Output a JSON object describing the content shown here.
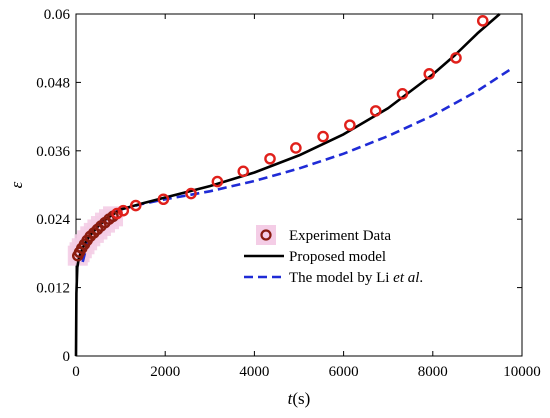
{
  "chart_data": {
    "type": "line",
    "xlabel": {
      "main": "t",
      "unit": "(s)"
    },
    "ylabel": "ε",
    "xlim": [
      0,
      10000
    ],
    "ylim": [
      0,
      0.06
    ],
    "x_ticks": [
      0,
      2000,
      4000,
      6000,
      8000,
      10000
    ],
    "x_tick_labels": [
      "0",
      "2000",
      "4000",
      "6000",
      "8000",
      "10000"
    ],
    "y_ticks": [
      0,
      0.012,
      0.024,
      0.036,
      0.048,
      0.06
    ],
    "y_tick_labels": [
      "0",
      "0.012",
      "0.024",
      "0.036",
      "0.048",
      "0.06"
    ],
    "grid": false,
    "legend_position": "lower-right",
    "colors": {
      "experiment": "#e0201b",
      "proposed": "#000000",
      "li": "#1f2bd6"
    },
    "series": [
      {
        "name": "Experiment Data",
        "kind": "scatter",
        "x": [
          40,
          80,
          130,
          190,
          250,
          320,
          400,
          480,
          560,
          650,
          740,
          830,
          920,
          1060,
          1340,
          1960,
          2580,
          3170,
          3750,
          4350,
          4930,
          5540,
          6140,
          6720,
          7320,
          7920,
          8520,
          9120
        ],
        "y": [
          0.0176,
          0.0182,
          0.0189,
          0.0196,
          0.0203,
          0.021,
          0.0216,
          0.0222,
          0.0228,
          0.0234,
          0.024,
          0.0245,
          0.025,
          0.0255,
          0.0264,
          0.0275,
          0.0285,
          0.0306,
          0.0324,
          0.0346,
          0.0365,
          0.0385,
          0.0405,
          0.043,
          0.046,
          0.0495,
          0.0523,
          0.0588
        ]
      },
      {
        "name": "Proposed model",
        "kind": "line",
        "x": [
          0,
          10,
          30,
          60,
          100,
          200,
          300,
          500,
          700,
          1000,
          1500,
          2000,
          3000,
          4000,
          5000,
          6000,
          7000,
          8000,
          8500,
          9000,
          9500
        ],
        "y": [
          0,
          0.011,
          0.0155,
          0.017,
          0.018,
          0.0198,
          0.021,
          0.0228,
          0.0242,
          0.0257,
          0.0268,
          0.0278,
          0.0298,
          0.0322,
          0.0352,
          0.0389,
          0.0435,
          0.0494,
          0.0528,
          0.0566,
          0.06
        ]
      },
      {
        "name": "The model by Li et al.",
        "legend_parts": [
          "The model by Li ",
          "et al",
          "."
        ],
        "kind": "dashed-line",
        "x": [
          150,
          300,
          500,
          700,
          1000,
          1500,
          2000,
          3000,
          4000,
          5000,
          6000,
          7000,
          8000,
          9000,
          9800
        ],
        "y": [
          0.0165,
          0.0212,
          0.0232,
          0.0245,
          0.0257,
          0.0267,
          0.0275,
          0.0289,
          0.0307,
          0.0329,
          0.0355,
          0.0386,
          0.0422,
          0.0465,
          0.0506
        ]
      }
    ]
  }
}
